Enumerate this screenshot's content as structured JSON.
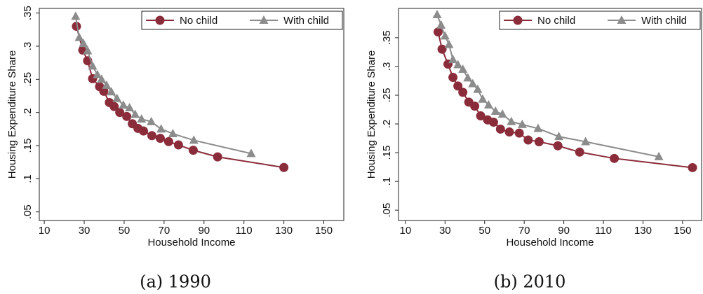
{
  "chart_data": [
    {
      "type": "line",
      "caption": "(a) 1990",
      "x_label": "Household Income",
      "y_label": "Housing Expenditure Share",
      "xlim": [
        7.5,
        160
      ],
      "ylim": [
        0.037,
        0.357
      ],
      "xticks": [
        10,
        30,
        50,
        70,
        90,
        110,
        130,
        150
      ],
      "yticks": [
        {
          "value": 0.05,
          "label": ".05"
        },
        {
          "value": 0.1,
          "label": ".1"
        },
        {
          "value": 0.15,
          "label": ".15"
        },
        {
          "value": 0.2,
          "label": ".2"
        },
        {
          "value": 0.25,
          "label": ".25"
        },
        {
          "value": 0.3,
          "label": ".3"
        },
        {
          "value": 0.35,
          "label": ".35"
        }
      ],
      "legend": "top-right",
      "series": [
        {
          "name": "No child",
          "color": "#8b2c3a",
          "marker": "circle",
          "x": [
            26.1,
            29.3,
            31.7,
            34.2,
            37.7,
            39.8,
            42.6,
            45,
            47.8,
            51.3,
            54.1,
            56.9,
            59.7,
            63.9,
            68.1,
            72.3,
            77.2,
            84.6,
            96.8,
            130
          ],
          "values": [
            0.33,
            0.294,
            0.278,
            0.251,
            0.239,
            0.232,
            0.215,
            0.209,
            0.2,
            0.194,
            0.183,
            0.176,
            0.172,
            0.165,
            0.161,
            0.156,
            0.151,
            0.143,
            0.133,
            0.117
          ]
        },
        {
          "name": "With child",
          "color": "#8c8c8c",
          "marker": "triangle",
          "x": [
            25.7,
            27.5,
            29.6,
            31.7,
            34.2,
            36.6,
            38.7,
            41.2,
            43.6,
            46.4,
            49.6,
            52.7,
            55.5,
            58.7,
            63.6,
            68.5,
            74.4,
            84.9,
            113.6
          ],
          "values": [
            0.345,
            0.313,
            0.304,
            0.293,
            0.27,
            0.257,
            0.25,
            0.241,
            0.231,
            0.221,
            0.211,
            0.207,
            0.197,
            0.19,
            0.186,
            0.175,
            0.168,
            0.158,
            0.138
          ]
        }
      ]
    },
    {
      "type": "line",
      "caption": "(b) 2010",
      "x_label": "Household Income",
      "y_label": "Housing Expenditure Share",
      "xlim": [
        6.5,
        159.6
      ],
      "ylim": [
        0.032,
        0.401
      ],
      "xticks": [
        10,
        30,
        50,
        70,
        90,
        110,
        130,
        150
      ],
      "yticks": [
        {
          "value": 0.05,
          "label": ".05"
        },
        {
          "value": 0.1,
          "label": ".1"
        },
        {
          "value": 0.15,
          "label": ".15"
        },
        {
          "value": 0.2,
          "label": ".2"
        },
        {
          "value": 0.25,
          "label": ".25"
        },
        {
          "value": 0.3,
          "label": ".3"
        },
        {
          "value": 0.35,
          "label": ".35"
        }
      ],
      "legend": "top-right",
      "series": [
        {
          "name": "No child",
          "color": "#8b2c3a",
          "marker": "circle",
          "x": [
            26.5,
            28.5,
            31.5,
            34,
            36.5,
            39,
            42,
            45,
            48,
            51.5,
            54.5,
            58,
            62.5,
            67.5,
            72,
            77.5,
            87,
            98,
            115.5,
            155
          ],
          "values": [
            0.36,
            0.33,
            0.304,
            0.281,
            0.266,
            0.255,
            0.238,
            0.231,
            0.214,
            0.207,
            0.203,
            0.191,
            0.186,
            0.184,
            0.172,
            0.169,
            0.162,
            0.151,
            0.14,
            0.124
          ]
        },
        {
          "name": "With child",
          "color": "#8c8c8c",
          "marker": "triangle",
          "x": [
            26,
            28,
            30,
            32,
            34,
            36.5,
            39,
            41.5,
            44,
            46.5,
            49,
            52,
            55.5,
            59,
            63.5,
            69,
            77,
            87.5,
            101,
            138
          ],
          "values": [
            0.39,
            0.372,
            0.353,
            0.338,
            0.312,
            0.303,
            0.295,
            0.28,
            0.27,
            0.26,
            0.243,
            0.233,
            0.222,
            0.217,
            0.204,
            0.199,
            0.192,
            0.178,
            0.169,
            0.143
          ]
        }
      ]
    }
  ]
}
